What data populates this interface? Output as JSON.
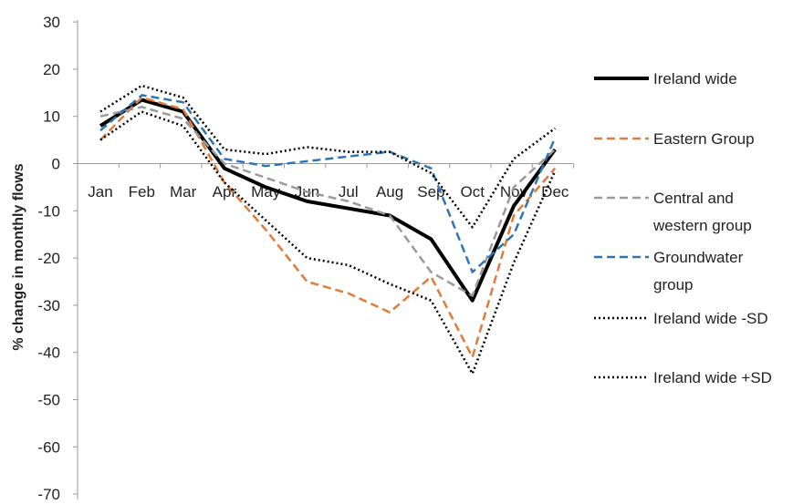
{
  "chart_data": {
    "type": "line",
    "categories": [
      "Jan",
      "Feb",
      "Mar",
      "Apr",
      "May",
      "Jun",
      "Jul",
      "Aug",
      "Sep",
      "Oct",
      "Nov",
      "Dec"
    ],
    "ylabel": "% change in monthly flows",
    "xlabel": "",
    "title": "",
    "ylim": [
      -70,
      30
    ],
    "yticks": [
      "30",
      "20",
      "10",
      "0",
      "-10",
      "-20",
      "-30",
      "-40",
      "-50",
      "-60",
      "-70"
    ],
    "grid": false,
    "legend_position": "right",
    "series": [
      {
        "name": "Ireland wide",
        "color": "#000000",
        "style": "solid",
        "values": [
          8,
          13.5,
          11,
          -1,
          -5,
          -8,
          -9.5,
          -11,
          -16,
          -29,
          -9,
          3
        ]
      },
      {
        "name": "Eastern Group",
        "color": "#E07B39",
        "style": "dashed",
        "values": [
          5,
          14,
          11.5,
          -4,
          -14,
          -25,
          -27.5,
          -31.5,
          -24,
          -41,
          -11,
          -1
        ]
      },
      {
        "name": "Central and western group",
        "color": "#9A9A9A",
        "style": "dashed",
        "values": [
          10,
          12,
          9.5,
          0,
          -3,
          -6,
          -8,
          -11,
          -23,
          -28,
          -5,
          3
        ]
      },
      {
        "name": "Groundwater group",
        "color": "#2E75B6",
        "style": "dashed",
        "values": [
          7,
          14.5,
          13,
          1,
          -0.5,
          0.5,
          1.5,
          2.5,
          -1,
          -23,
          -15,
          5.5
        ]
      },
      {
        "name": "Ireland wide -SD",
        "color": "#000000",
        "style": "dotted",
        "values": [
          5,
          11,
          8,
          -4,
          -12,
          -20,
          -21.5,
          -25.5,
          -29,
          -44.5,
          -21,
          -1.5
        ]
      },
      {
        "name": "Ireland wide +SD",
        "color": "#000000",
        "style": "dotted",
        "values": [
          11,
          16.5,
          14,
          3,
          2,
          3.5,
          2.5,
          2.5,
          -2,
          -13.5,
          1,
          7.5
        ]
      }
    ]
  }
}
